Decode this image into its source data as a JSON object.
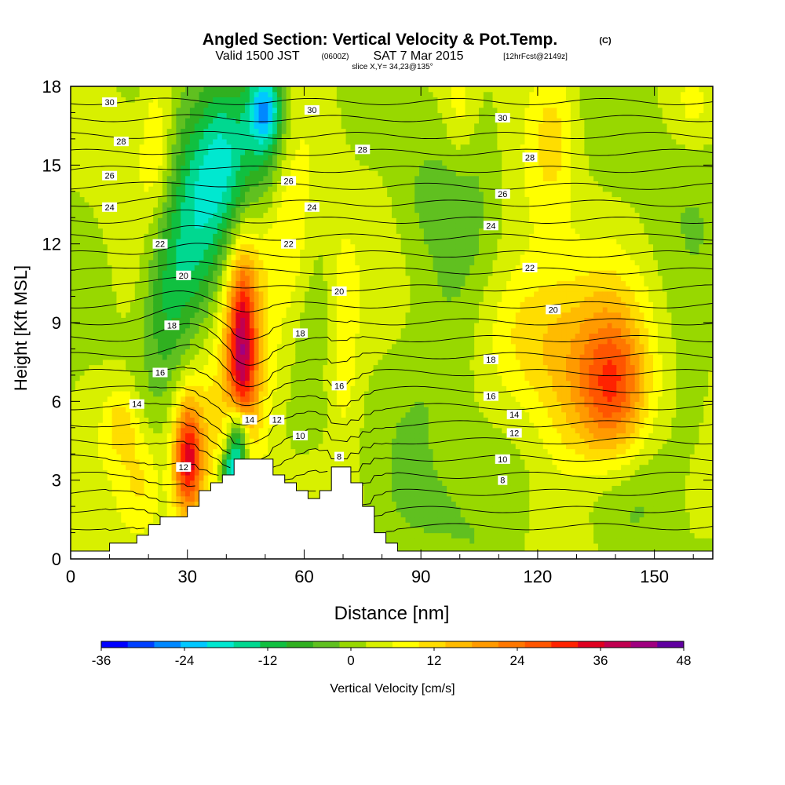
{
  "title": {
    "main": "Angled Section: Vertical Velocity & Pot.Temp.",
    "main_suffix": "(C)",
    "valid_prefix": "Valid 1500 JST",
    "valid_zone": "(0600Z)",
    "valid_date": "SAT 7 Mar 2015",
    "valid_fcst": "[12hrFcst@2149z]",
    "slice": "slice X,Y= 34,23@135°"
  },
  "chart_data": {
    "type": "heatmap",
    "xlabel": "Distance [nm]",
    "ylabel": "Height [Kft MSL]",
    "xlim": [
      0,
      165
    ],
    "ylim": [
      0,
      18
    ],
    "x_ticks": [
      "0",
      "30",
      "60",
      "90",
      "120",
      "150"
    ],
    "x_tick_values": [
      0,
      30,
      60,
      90,
      120,
      150
    ],
    "y_ticks": [
      "0",
      "3",
      "6",
      "9",
      "12",
      "15",
      "18"
    ],
    "y_tick_values": [
      0,
      3,
      6,
      9,
      12,
      15,
      18
    ],
    "terrain_profile": [
      [
        10,
        0.6
      ],
      [
        17,
        0.6
      ],
      [
        17,
        0.9
      ],
      [
        20,
        0.9
      ],
      [
        20,
        1.3
      ],
      [
        23,
        1.3
      ],
      [
        23,
        1.6
      ],
      [
        30,
        1.6
      ],
      [
        30,
        2.0
      ],
      [
        33,
        2.0
      ],
      [
        33,
        2.6
      ],
      [
        36,
        2.6
      ],
      [
        36,
        2.9
      ],
      [
        39,
        2.9
      ],
      [
        39,
        3.2
      ],
      [
        42,
        3.2
      ],
      [
        42,
        3.8
      ],
      [
        52,
        3.8
      ],
      [
        52,
        3.2
      ],
      [
        55,
        3.2
      ],
      [
        55,
        2.9
      ],
      [
        58,
        2.9
      ],
      [
        58,
        2.6
      ],
      [
        61,
        2.6
      ],
      [
        61,
        2.3
      ],
      [
        64,
        2.3
      ],
      [
        64,
        2.6
      ],
      [
        67,
        2.6
      ],
      [
        67,
        3.5
      ],
      [
        72,
        3.5
      ],
      [
        72,
        2.9
      ],
      [
        75,
        2.9
      ],
      [
        75,
        2.0
      ],
      [
        78,
        2.0
      ],
      [
        78,
        1.0
      ],
      [
        81,
        1.0
      ],
      [
        81,
        0.6
      ],
      [
        84,
        0.6
      ],
      [
        84,
        0.3
      ],
      [
        91,
        0.3
      ]
    ],
    "velocity_field": {
      "background": 2,
      "features": [
        {
          "x": 50,
          "y": 17.2,
          "sx": 3,
          "sy": 1.0,
          "v": -20
        },
        {
          "x": 50,
          "y": 16.0,
          "sx": 4,
          "sy": 2.0,
          "v": -12
        },
        {
          "x": 40,
          "y": 15.0,
          "sx": 5,
          "sy": 2.5,
          "v": -18
        },
        {
          "x": 31,
          "y": 12.5,
          "sx": 5,
          "sy": 3.0,
          "v": -16
        },
        {
          "x": 24,
          "y": 10.0,
          "sx": 4,
          "sy": 2.5,
          "v": -10
        },
        {
          "x": 43,
          "y": 4.5,
          "sx": 2,
          "sy": 1.0,
          "v": -30
        },
        {
          "x": 41,
          "y": 3.4,
          "sx": 2,
          "sy": 0.5,
          "v": -18
        },
        {
          "x": 30,
          "y": 3.8,
          "sx": 2.5,
          "sy": 1.5,
          "v": 28
        },
        {
          "x": 32,
          "y": 4.5,
          "sx": 5,
          "sy": 2.5,
          "v": 10
        },
        {
          "x": 44,
          "y": 8.0,
          "sx": 2.5,
          "sy": 2.5,
          "v": 26
        },
        {
          "x": 45,
          "y": 9.0,
          "sx": 5,
          "sy": 4.0,
          "v": 12
        },
        {
          "x": 22,
          "y": 16.0,
          "sx": 3,
          "sy": 2.0,
          "v": 8
        },
        {
          "x": 56,
          "y": 12.0,
          "sx": 4,
          "sy": 2.5,
          "v": 8
        },
        {
          "x": 70,
          "y": 8.5,
          "sx": 3,
          "sy": 3.0,
          "v": 8
        },
        {
          "x": 100,
          "y": 17.0,
          "sx": 3,
          "sy": 1.5,
          "v": 7
        },
        {
          "x": 124,
          "y": 16.0,
          "sx": 4,
          "sy": 2.0,
          "v": 7
        },
        {
          "x": 130,
          "y": 7.0,
          "sx": 10,
          "sy": 3.0,
          "v": 14
        },
        {
          "x": 140,
          "y": 6.5,
          "sx": 6,
          "sy": 2.0,
          "v": 20
        },
        {
          "x": 118,
          "y": 8.5,
          "sx": 8,
          "sy": 2.0,
          "v": 8
        },
        {
          "x": 88,
          "y": 13.5,
          "sx": 5,
          "sy": 2.0,
          "v": -4
        },
        {
          "x": 100,
          "y": 13.0,
          "sx": 6,
          "sy": 4.0,
          "v": -3
        },
        {
          "x": 95,
          "y": 7.0,
          "sx": 8,
          "sy": 2.5,
          "v": -3
        },
        {
          "x": 110,
          "y": 4.5,
          "sx": 10,
          "sy": 2.5,
          "v": -4
        },
        {
          "x": 135,
          "y": 2.6,
          "sx": 10,
          "sy": 1.5,
          "v": -5
        },
        {
          "x": 95,
          "y": 1.5,
          "sx": 8,
          "sy": 1.5,
          "v": -3
        },
        {
          "x": 160,
          "y": 6.0,
          "sx": 4,
          "sy": 2.0,
          "v": -4
        },
        {
          "x": 150,
          "y": 13.5,
          "sx": 8,
          "sy": 3.0,
          "v": -2
        },
        {
          "x": 160,
          "y": 17.0,
          "sx": 4,
          "sy": 1.0,
          "v": 4
        },
        {
          "x": 10,
          "y": 16.0,
          "sx": 4,
          "sy": 2.0,
          "v": 3
        },
        {
          "x": 5,
          "y": 7.0,
          "sx": 3,
          "sy": 3.0,
          "v": 1
        },
        {
          "x": 13,
          "y": 5.2,
          "sx": 3,
          "sy": 1.0,
          "v": 10
        },
        {
          "x": 18,
          "y": 3.0,
          "sx": 4,
          "sy": 1.5,
          "v": 10
        },
        {
          "x": 62,
          "y": 5.0,
          "sx": 6,
          "sy": 1.0,
          "v": -2
        }
      ]
    },
    "theta_contours": [
      4,
      5,
      6,
      7,
      8,
      9,
      10,
      11,
      12,
      13,
      14,
      15,
      16,
      17,
      18,
      19,
      20,
      21,
      22,
      23,
      24,
      25,
      26,
      27,
      28,
      29,
      30,
      31
    ],
    "contour_labels": [
      {
        "text": "30",
        "x": 10,
        "y": 17.4
      },
      {
        "text": "28",
        "x": 13,
        "y": 15.9
      },
      {
        "text": "26",
        "x": 10,
        "y": 14.6
      },
      {
        "text": "24",
        "x": 10,
        "y": 13.4
      },
      {
        "text": "22",
        "x": 23,
        "y": 12.0
      },
      {
        "text": "20",
        "x": 29,
        "y": 10.8
      },
      {
        "text": "18",
        "x": 26,
        "y": 8.9
      },
      {
        "text": "16",
        "x": 23,
        "y": 7.1
      },
      {
        "text": "14",
        "x": 17,
        "y": 5.9
      },
      {
        "text": "12",
        "x": 29,
        "y": 3.5
      },
      {
        "text": "30",
        "x": 62,
        "y": 17.1
      },
      {
        "text": "28",
        "x": 75,
        "y": 15.6
      },
      {
        "text": "26",
        "x": 56,
        "y": 14.4
      },
      {
        "text": "24",
        "x": 62,
        "y": 13.4
      },
      {
        "text": "22",
        "x": 56,
        "y": 12.0
      },
      {
        "text": "20",
        "x": 69,
        "y": 10.2
      },
      {
        "text": "18",
        "x": 59,
        "y": 8.6
      },
      {
        "text": "16",
        "x": 69,
        "y": 6.6
      },
      {
        "text": "14",
        "x": 46,
        "y": 5.3
      },
      {
        "text": "12",
        "x": 53,
        "y": 5.3
      },
      {
        "text": "10",
        "x": 59,
        "y": 4.7
      },
      {
        "text": "8",
        "x": 69,
        "y": 3.9
      },
      {
        "text": "30",
        "x": 111,
        "y": 16.8
      },
      {
        "text": "28",
        "x": 118,
        "y": 15.3
      },
      {
        "text": "26",
        "x": 111,
        "y": 13.9
      },
      {
        "text": "24",
        "x": 108,
        "y": 12.7
      },
      {
        "text": "22",
        "x": 118,
        "y": 11.1
      },
      {
        "text": "20",
        "x": 124,
        "y": 9.5
      },
      {
        "text": "18",
        "x": 108,
        "y": 7.6
      },
      {
        "text": "16",
        "x": 108,
        "y": 6.2
      },
      {
        "text": "14",
        "x": 114,
        "y": 5.5
      },
      {
        "text": "12",
        "x": 114,
        "y": 4.8
      },
      {
        "text": "10",
        "x": 111,
        "y": 3.8
      },
      {
        "text": "8",
        "x": 111,
        "y": 3.0
      }
    ]
  },
  "colorbar": {
    "label": "Vertical Velocity [cm/s]",
    "colors": [
      "#0000ff",
      "#0040ff",
      "#0088ff",
      "#00c8ff",
      "#00e8d0",
      "#00d890",
      "#10c040",
      "#30b020",
      "#60c020",
      "#98d800",
      "#d8f000",
      "#ffff00",
      "#ffdd00",
      "#ffbb00",
      "#ff9a00",
      "#ff7700",
      "#ff5500",
      "#ff2200",
      "#e00020",
      "#c00050",
      "#a00080",
      "#6000a0"
    ],
    "values": [
      -36,
      -32,
      -28,
      -24,
      -20,
      -16,
      -12,
      -8,
      -4,
      0,
      4,
      8,
      12,
      16,
      20,
      24,
      28,
      32,
      36,
      40,
      44,
      48
    ],
    "tick_labels": [
      "-36",
      "-24",
      "-12",
      "0",
      "12",
      "24",
      "36",
      "48"
    ]
  }
}
